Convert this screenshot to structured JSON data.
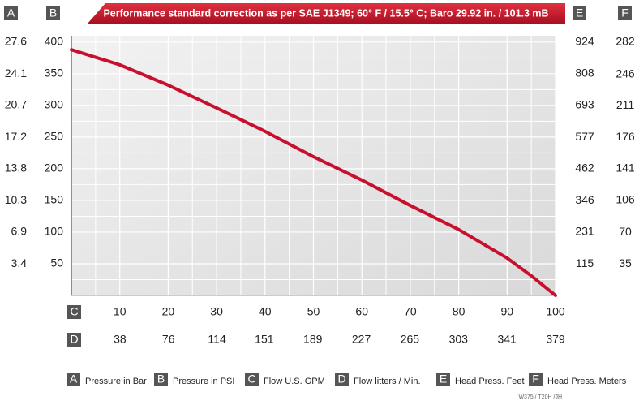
{
  "chart_data": {
    "type": "line",
    "title": "Performance standard correction as per SAE J1349;  60° F / 15.5° C;  Baro 29.92 in. / 101.3 mB",
    "x": [
      0,
      10,
      20,
      30,
      40,
      50,
      60,
      70,
      80,
      90,
      95,
      100
    ],
    "series": [
      {
        "name": "Pressure in PSI",
        "color": "#c8102e",
        "values": [
          388,
          364,
          332,
          296,
          259,
          219,
          182,
          142,
          104,
          59,
          31,
          0
        ]
      }
    ],
    "xlim": [
      0,
      100
    ],
    "xticks": [
      10,
      20,
      30,
      40,
      50,
      60,
      70,
      80,
      90,
      100
    ],
    "ylim": [
      0,
      410
    ],
    "yticks": [
      50,
      100,
      150,
      200,
      250,
      300,
      350,
      400
    ],
    "grid": true,
    "x_letter": "C",
    "y_letter": "B",
    "axes": [
      {
        "letter": "A",
        "side": "left",
        "lim": [
          0,
          28.29
        ],
        "ticks": [
          3.4,
          6.9,
          10.3,
          13.8,
          17.2,
          20.7,
          24.1,
          27.6
        ]
      },
      {
        "letter": "D",
        "side": "bottom",
        "lim": [
          0,
          379
        ],
        "ticks": [
          38,
          76,
          114,
          151,
          189,
          227,
          265,
          303,
          341,
          379
        ]
      },
      {
        "letter": "E",
        "side": "right",
        "lim": [
          0,
          947.1
        ],
        "ticks": [
          115,
          231,
          346,
          462,
          577,
          693,
          808,
          924
        ]
      },
      {
        "letter": "F",
        "side": "right",
        "lim": [
          0,
          289.05
        ],
        "ticks": [
          35,
          70,
          106,
          141,
          176,
          211,
          246,
          282
        ]
      }
    ],
    "legend": [
      {
        "letter": "A",
        "label": "Pressure in Bar"
      },
      {
        "letter": "B",
        "label": "Pressure in PSI"
      },
      {
        "letter": "C",
        "label": "Flow U.S. GPM"
      },
      {
        "letter": "D",
        "label": "Flow litters / Min."
      },
      {
        "letter": "E",
        "label": "Head Press. Feet"
      },
      {
        "letter": "F",
        "label": "Head Press. Meters"
      }
    ],
    "footnote": "W375 / T20H /JH"
  }
}
